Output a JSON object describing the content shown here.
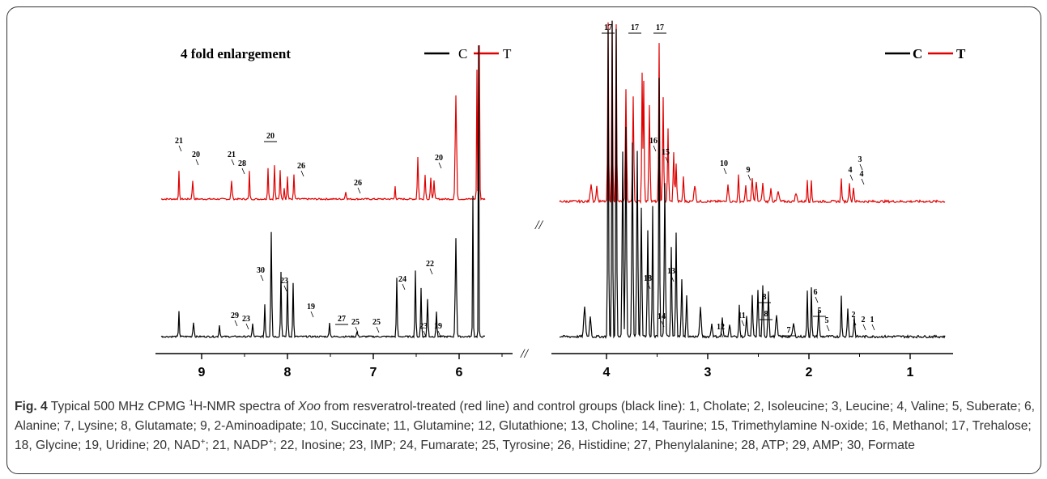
{
  "figure": {
    "enlargement_label": "4 fold enlargement",
    "legend": {
      "left": {
        "c": "C",
        "t": "T"
      },
      "right": {
        "c": "C",
        "t": "T"
      },
      "c_color": "#000000",
      "t_color": "#e00000"
    },
    "axis_break": "//",
    "left_axis_ticks": [
      "9",
      "8",
      "7",
      "6"
    ],
    "right_axis_ticks": [
      "4",
      "3",
      "2",
      "1"
    ],
    "peak_labels": {
      "red_left": [
        "21",
        "20",
        "21",
        "28",
        "20",
        "26",
        "26",
        "20"
      ],
      "black_left": [
        "30",
        "29",
        "23",
        "23",
        "19",
        "27",
        "25",
        "25",
        "24",
        "22",
        "23",
        "19"
      ],
      "top_red": [
        "17",
        "17",
        "17"
      ],
      "red_right": [
        "16",
        "15",
        "10",
        "9",
        "4",
        "3",
        "4"
      ],
      "black_right": [
        "18",
        "13",
        "14",
        "12",
        "11",
        "8",
        "8",
        "7",
        "6",
        "5",
        "5",
        "2",
        "2",
        "1"
      ]
    }
  },
  "caption": {
    "fig_label": "Fig. 4",
    "text_a": " Typical 500 MHz CPMG ",
    "sup_1": "1",
    "text_b": "H-NMR spectra of ",
    "species": "Xoo",
    "text_c": " from resveratrol-treated (red line) and control groups (black line): 1, Cholate; 2, Isoleucine; 3, Leucine; 4, Valine; 5, Suberate; 6, Alanine; 7, Lysine; 8, Glutamate; 9, 2-Aminoadipate; 10, Succinate; 11, Glutamine; 12, Glutathione; 13, Choline; 14, Taurine; 15, Trimethylamine N-oxide; 16, Methanol; 17, Trehalose; 18, Glycine; 19, Uridine; 20, NAD",
    "sup_plus_1": "+",
    "text_d": "; 21, NADP",
    "sup_plus_2": "+",
    "text_e": "; 22, Inosine; 23, IMP; 24, Fumarate; 25, Tyrosine; 26, Histidine; 27, Phenylalanine; 28, ATP; 29, AMP; 30, Formate"
  }
}
